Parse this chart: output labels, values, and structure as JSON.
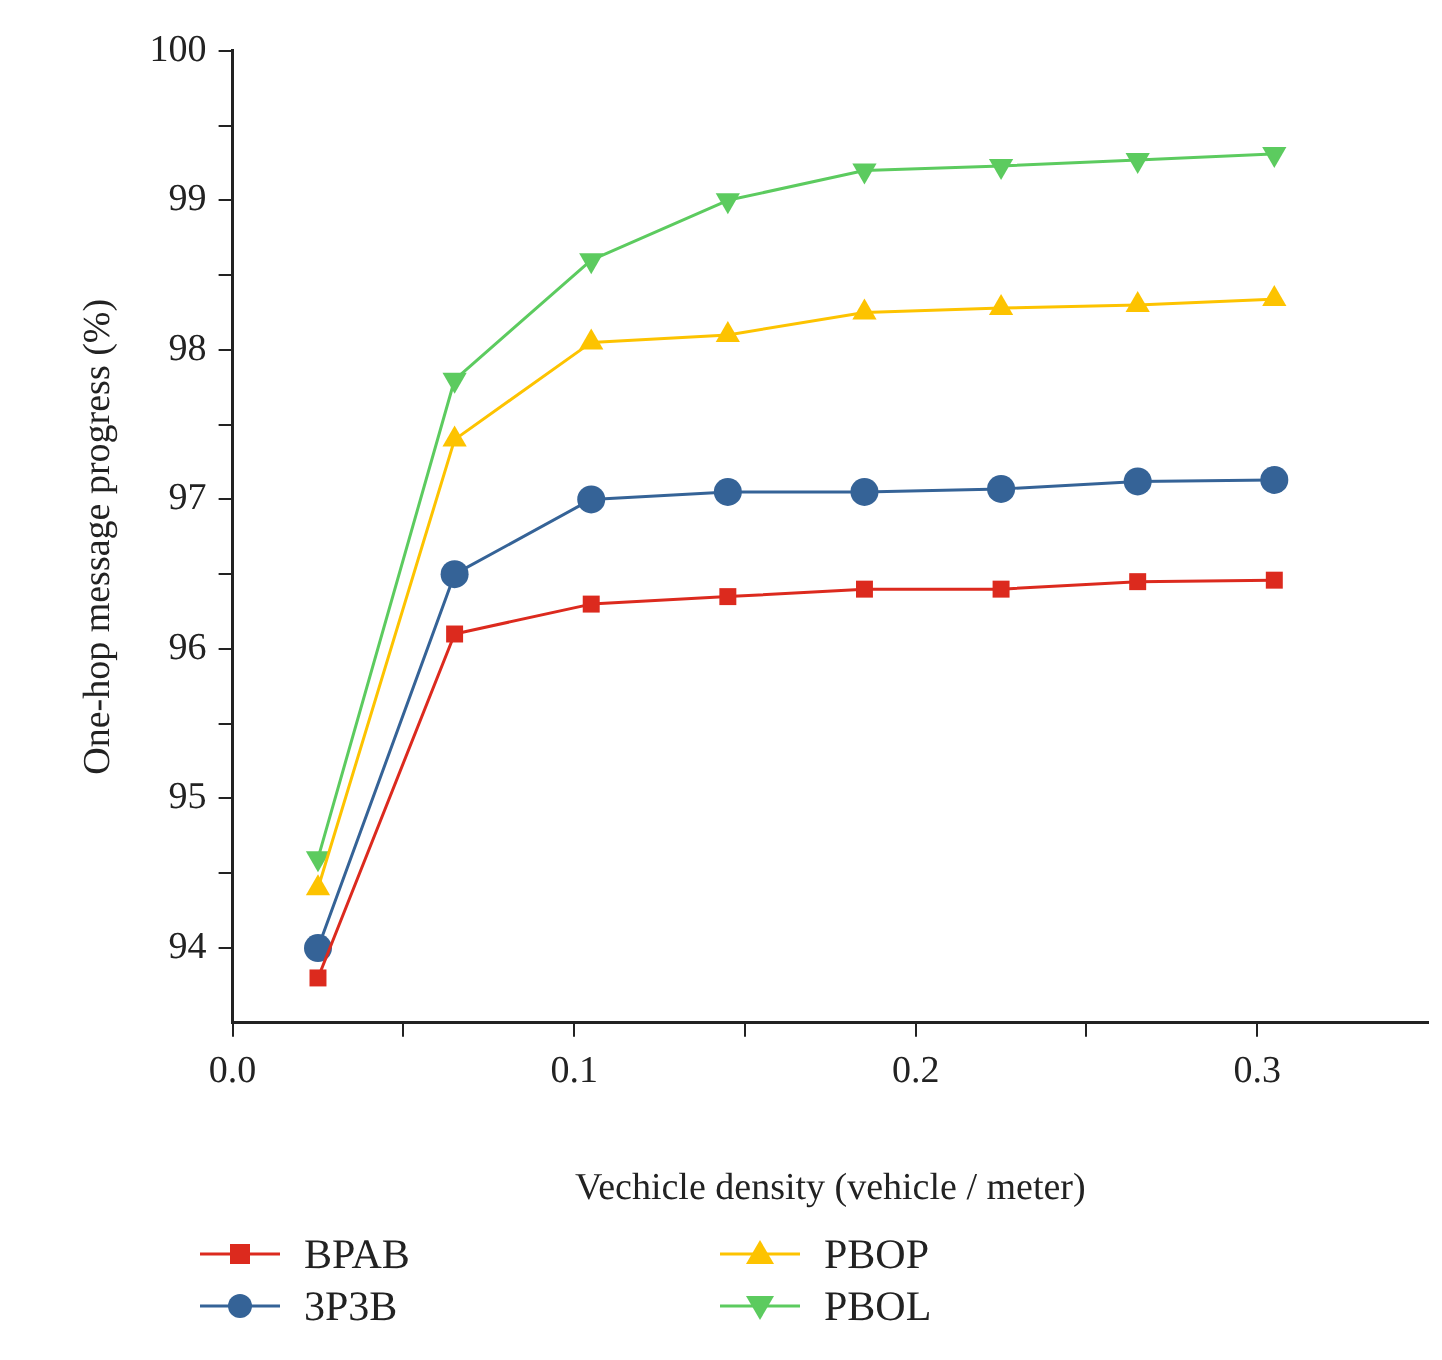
{
  "chart_data": {
    "type": "line",
    "xlabel": "Vechicle density (vehicle / meter)",
    "ylabel": "One-hop message progress (%)",
    "x": [
      0.025,
      0.065,
      0.105,
      0.145,
      0.185,
      0.225,
      0.265,
      0.305
    ],
    "xlim": [
      0,
      0.35
    ],
    "xticks": [
      {
        "value": 0,
        "label": "0.0"
      },
      {
        "value": 0.05,
        "label": null
      },
      0.1,
      {
        "value": 0.15,
        "label": null
      },
      0.2,
      {
        "value": 0.25,
        "label": null
      },
      0.3
    ],
    "ylim": [
      93.5,
      100
    ],
    "yticks": [
      {
        "value": 94,
        "label": "94"
      },
      {
        "value": 94.5,
        "label": null
      },
      95,
      {
        "value": 95.5,
        "label": null
      },
      96,
      {
        "value": 96.5,
        "label": null
      },
      97,
      {
        "value": 97.5,
        "label": null
      },
      98,
      {
        "value": 98.5,
        "label": null
      },
      99,
      {
        "value": 99.5,
        "label": null
      },
      100
    ],
    "grid": false,
    "legend": "bottom",
    "line_style": "solid",
    "series": [
      {
        "name": "BPAB",
        "color": "#dc2a1e",
        "marker": "square",
        "values": [
          93.8,
          96.1,
          96.3,
          96.35,
          96.4,
          96.4,
          96.45,
          96.46
        ]
      },
      {
        "name": "3P3B",
        "color": "#356397",
        "marker": "circle",
        "values": [
          94.0,
          96.5,
          97.0,
          97.05,
          97.05,
          97.07,
          97.12,
          97.13
        ]
      },
      {
        "name": "PBOP",
        "color": "#fdc300",
        "marker": "triangle",
        "values": [
          94.4,
          97.4,
          98.05,
          98.1,
          98.25,
          98.28,
          98.3,
          98.34
        ]
      },
      {
        "name": "PBOL",
        "color": "#5ccb5f",
        "marker": "triangle-down",
        "values": [
          94.6,
          97.8,
          98.6,
          99.0,
          99.2,
          99.23,
          99.27,
          99.31
        ]
      }
    ]
  }
}
